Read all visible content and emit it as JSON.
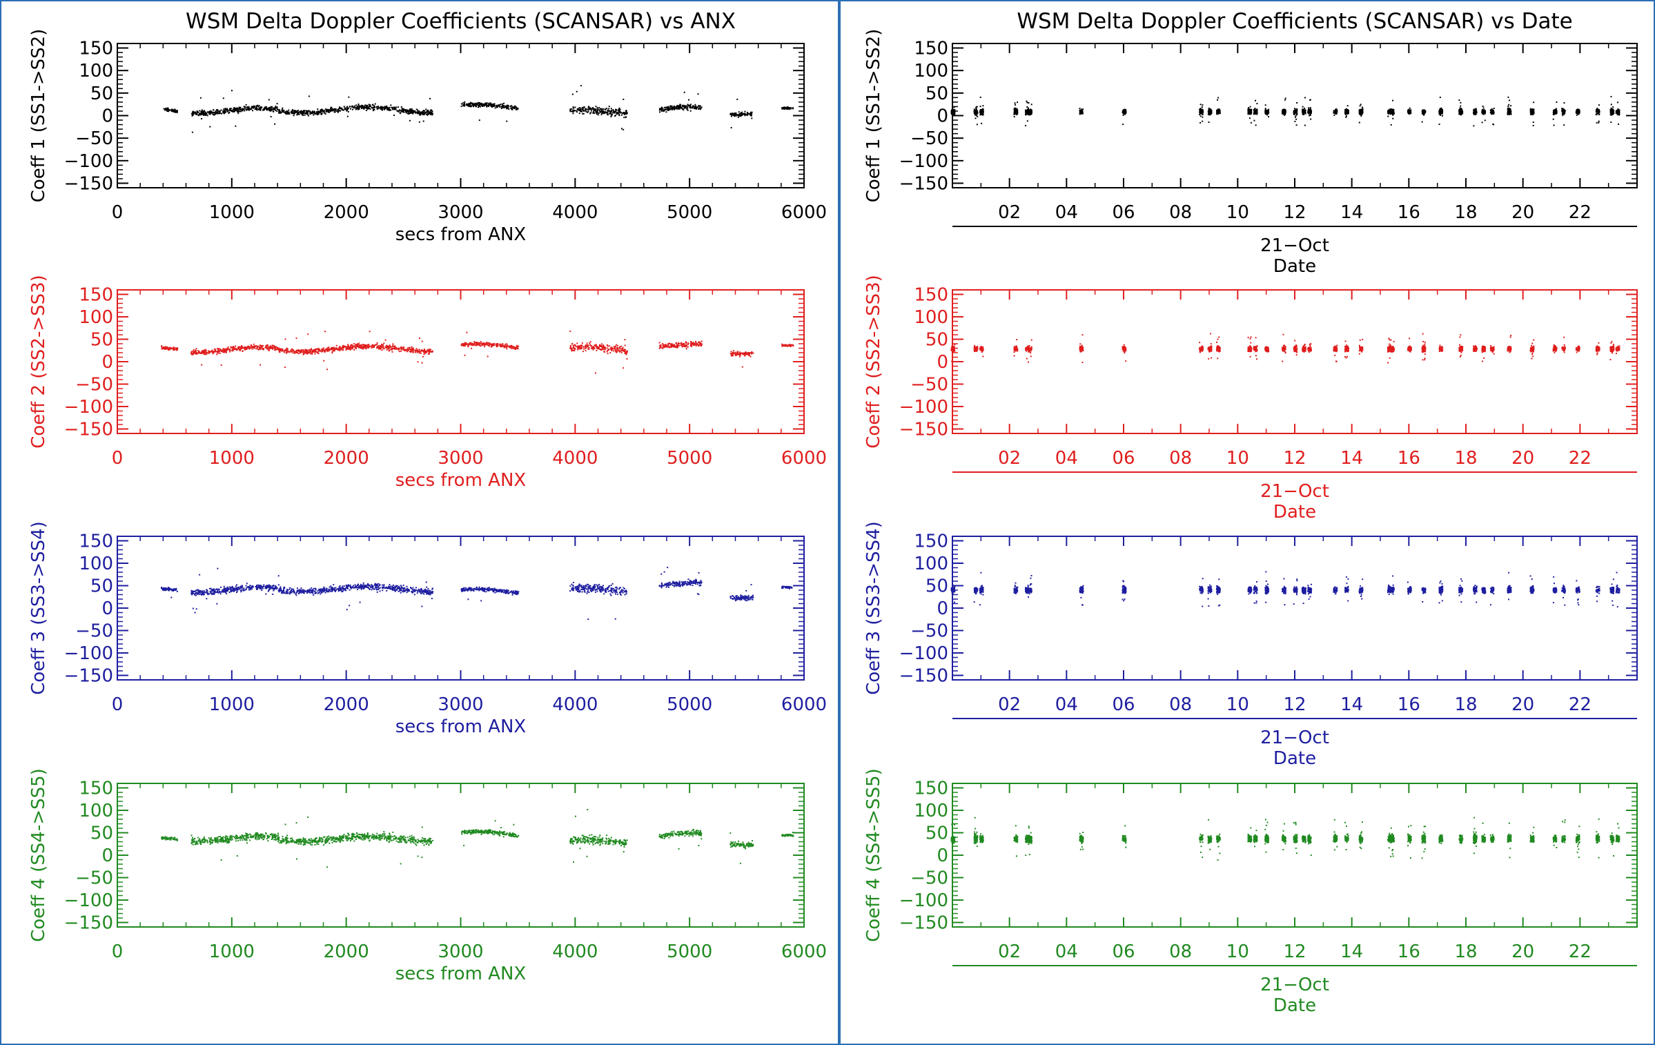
{
  "chart_data": [
    {
      "type": "scatter",
      "title": "WSM Delta Doppler Coefficients (SCANSAR) vs ANX",
      "xlabel": "secs from ANX",
      "ylabel": "Coeff 1 (SS1->SS2)",
      "color": "#000000",
      "xlim": [
        0,
        6000
      ],
      "ylim": [
        -160,
        160
      ],
      "xticks": [
        "0",
        "1000",
        "2000",
        "3000",
        "4000",
        "5000",
        "6000"
      ],
      "yticks": [
        "150",
        "100",
        "50",
        "0",
        "−50",
        "−100",
        "−150"
      ],
      "segments": [
        {
          "x": [
            400,
            520
          ],
          "y": 10,
          "spread": 6
        },
        {
          "x": [
            640,
            1400
          ],
          "y": 12,
          "spread": 10
        },
        {
          "x": [
            1400,
            2750
          ],
          "y": 14,
          "spread": 10
        },
        {
          "x": [
            3000,
            3500
          ],
          "y": 20,
          "spread": 8
        },
        {
          "x": [
            3950,
            4450
          ],
          "y": 8,
          "spread": 14
        },
        {
          "x": [
            4730,
            5100
          ],
          "y": 15,
          "spread": 10
        },
        {
          "x": [
            5350,
            5550
          ],
          "y": 10,
          "spread": 8
        },
        {
          "x": [
            5800,
            5900
          ],
          "y": 12,
          "spread": 4
        }
      ]
    },
    {
      "type": "scatter",
      "title": "",
      "xlabel": "secs from ANX",
      "ylabel": "Coeff 2 (SS2->SS3)",
      "color": "#e01e1e",
      "xlim": [
        0,
        6000
      ],
      "ylim": [
        -160,
        160
      ],
      "xticks": [
        "0",
        "1000",
        "2000",
        "3000",
        "4000",
        "5000",
        "6000"
      ],
      "yticks": [
        "150",
        "100",
        "50",
        "0",
        "−50",
        "−100",
        "−150"
      ],
      "segments": [
        {
          "x": [
            380,
            520
          ],
          "y": 28,
          "spread": 6
        },
        {
          "x": [
            640,
            1400
          ],
          "y": 28,
          "spread": 10
        },
        {
          "x": [
            1400,
            2750
          ],
          "y": 30,
          "spread": 10
        },
        {
          "x": [
            3000,
            3500
          ],
          "y": 35,
          "spread": 8
        },
        {
          "x": [
            3950,
            4450
          ],
          "y": 28,
          "spread": 14
        },
        {
          "x": [
            4730,
            5100
          ],
          "y": 35,
          "spread": 10
        },
        {
          "x": [
            5350,
            5550
          ],
          "y": 25,
          "spread": 10
        },
        {
          "x": [
            5800,
            5900
          ],
          "y": 32,
          "spread": 4
        }
      ]
    },
    {
      "type": "scatter",
      "title": "",
      "xlabel": "secs from ANX",
      "ylabel": "Coeff 3 (SS3->SS4)",
      "color": "#1e1ea0",
      "xlim": [
        0,
        6000
      ],
      "ylim": [
        -160,
        160
      ],
      "xticks": [
        "0",
        "1000",
        "2000",
        "3000",
        "4000",
        "5000",
        "6000"
      ],
      "yticks": [
        "150",
        "100",
        "50",
        "0",
        "−50",
        "−100",
        "−150"
      ],
      "segments": [
        {
          "x": [
            380,
            520
          ],
          "y": 40,
          "spread": 6
        },
        {
          "x": [
            640,
            1400
          ],
          "y": 42,
          "spread": 12
        },
        {
          "x": [
            1400,
            2750
          ],
          "y": 44,
          "spread": 12
        },
        {
          "x": [
            3000,
            3500
          ],
          "y": 38,
          "spread": 8
        },
        {
          "x": [
            3950,
            4450
          ],
          "y": 40,
          "spread": 16
        },
        {
          "x": [
            4730,
            5100
          ],
          "y": 52,
          "spread": 10
        },
        {
          "x": [
            5350,
            5550
          ],
          "y": 30,
          "spread": 10
        },
        {
          "x": [
            5800,
            5900
          ],
          "y": 42,
          "spread": 4
        }
      ]
    },
    {
      "type": "scatter",
      "title": "",
      "xlabel": "secs from ANX",
      "ylabel": "Coeff 4 (SS4->SS5)",
      "color": "#208a20",
      "xlim": [
        0,
        6000
      ],
      "ylim": [
        -160,
        160
      ],
      "xticks": [
        "0",
        "1000",
        "2000",
        "3000",
        "4000",
        "5000",
        "6000"
      ],
      "yticks": [
        "150",
        "100",
        "50",
        "0",
        "−50",
        "−100",
        "−150"
      ],
      "segments": [
        {
          "x": [
            380,
            520
          ],
          "y": 35,
          "spread": 6
        },
        {
          "x": [
            640,
            1400
          ],
          "y": 38,
          "spread": 14
        },
        {
          "x": [
            1400,
            2750
          ],
          "y": 38,
          "spread": 14
        },
        {
          "x": [
            3000,
            3500
          ],
          "y": 48,
          "spread": 8
        },
        {
          "x": [
            3950,
            4450
          ],
          "y": 30,
          "spread": 16
        },
        {
          "x": [
            4730,
            5100
          ],
          "y": 45,
          "spread": 10
        },
        {
          "x": [
            5350,
            5550
          ],
          "y": 30,
          "spread": 10
        },
        {
          "x": [
            5800,
            5900
          ],
          "y": 40,
          "spread": 4
        }
      ]
    },
    {
      "type": "scatter",
      "title": "WSM Delta Doppler Coefficients (SCANSAR) vs Date",
      "xlabel": "Date",
      "date_label": "21−Oct",
      "ylabel": "Coeff 1 (SS1->SS2)",
      "color": "#000000",
      "xlim": [
        0,
        24
      ],
      "ylim": [
        -160,
        160
      ],
      "xticks": [
        "02",
        "04",
        "06",
        "08",
        "10",
        "12",
        "14",
        "16",
        "18",
        "20",
        "22"
      ],
      "yticks": [
        "150",
        "100",
        "50",
        "0",
        "−50",
        "−100",
        "−150"
      ],
      "bursts": [
        0.0,
        0.8,
        1.0,
        2.2,
        2.6,
        2.7,
        4.5,
        6.0,
        8.7,
        9.0,
        9.3,
        10.4,
        10.6,
        11.0,
        11.6,
        12.0,
        12.3,
        12.5,
        13.4,
        13.8,
        14.3,
        15.3,
        15.4,
        16.0,
        16.5,
        17.1,
        17.8,
        18.3,
        18.6,
        18.9,
        19.5,
        20.3,
        21.1,
        21.4,
        21.9,
        22.6,
        23.1,
        23.3
      ],
      "level": 10,
      "spread": 10
    },
    {
      "type": "scatter",
      "title": "",
      "xlabel": "Date",
      "date_label": "21−Oct",
      "ylabel": "Coeff 2 (SS2->SS3)",
      "color": "#e01e1e",
      "xlim": [
        0,
        24
      ],
      "ylim": [
        -160,
        160
      ],
      "xticks": [
        "02",
        "04",
        "06",
        "08",
        "10",
        "12",
        "14",
        "16",
        "18",
        "20",
        "22"
      ],
      "yticks": [
        "150",
        "100",
        "50",
        "0",
        "−50",
        "−100",
        "−150"
      ],
      "bursts": [
        0.0,
        0.8,
        1.0,
        2.2,
        2.6,
        2.7,
        4.5,
        6.0,
        8.7,
        9.0,
        9.3,
        10.4,
        10.6,
        11.0,
        11.6,
        12.0,
        12.3,
        12.5,
        13.4,
        13.8,
        14.3,
        15.3,
        15.4,
        16.0,
        16.5,
        17.1,
        17.8,
        18.3,
        18.6,
        18.9,
        19.5,
        20.3,
        21.1,
        21.4,
        21.9,
        22.6,
        23.1,
        23.3
      ],
      "level": 30,
      "spread": 10
    },
    {
      "type": "scatter",
      "title": "",
      "xlabel": "Date",
      "date_label": "21−Oct",
      "ylabel": "Coeff 3 (SS3->SS4)",
      "color": "#1e1ea0",
      "xlim": [
        0,
        24
      ],
      "ylim": [
        -160,
        160
      ],
      "xticks": [
        "02",
        "04",
        "06",
        "08",
        "10",
        "12",
        "14",
        "16",
        "18",
        "20",
        "22"
      ],
      "yticks": [
        "150",
        "100",
        "50",
        "0",
        "−50",
        "−100",
        "−150"
      ],
      "bursts": [
        0.0,
        0.8,
        1.0,
        2.2,
        2.6,
        2.7,
        4.5,
        6.0,
        8.7,
        9.0,
        9.3,
        10.4,
        10.6,
        11.0,
        11.6,
        12.0,
        12.3,
        12.5,
        13.4,
        13.8,
        14.3,
        15.3,
        15.4,
        16.0,
        16.5,
        17.1,
        17.8,
        18.3,
        18.6,
        18.9,
        19.5,
        20.3,
        21.1,
        21.4,
        21.9,
        22.6,
        23.1,
        23.3
      ],
      "level": 42,
      "spread": 12
    },
    {
      "type": "scatter",
      "title": "",
      "xlabel": "Date",
      "date_label": "21−Oct",
      "ylabel": "Coeff 4 (SS4->SS5)",
      "color": "#208a20",
      "xlim": [
        0,
        24
      ],
      "ylim": [
        -160,
        160
      ],
      "xticks": [
        "02",
        "04",
        "06",
        "08",
        "10",
        "12",
        "14",
        "16",
        "18",
        "20",
        "22"
      ],
      "yticks": [
        "150",
        "100",
        "50",
        "0",
        "−50",
        "−100",
        "−150"
      ],
      "bursts": [
        0.0,
        0.8,
        1.0,
        2.2,
        2.6,
        2.7,
        4.5,
        6.0,
        8.7,
        9.0,
        9.3,
        10.4,
        10.6,
        11.0,
        11.6,
        12.0,
        12.3,
        12.5,
        13.4,
        13.8,
        14.3,
        15.3,
        15.4,
        16.0,
        16.5,
        17.1,
        17.8,
        18.3,
        18.6,
        18.9,
        19.5,
        20.3,
        21.1,
        21.4,
        21.9,
        22.6,
        23.1,
        23.3
      ],
      "level": 38,
      "spread": 14
    }
  ]
}
